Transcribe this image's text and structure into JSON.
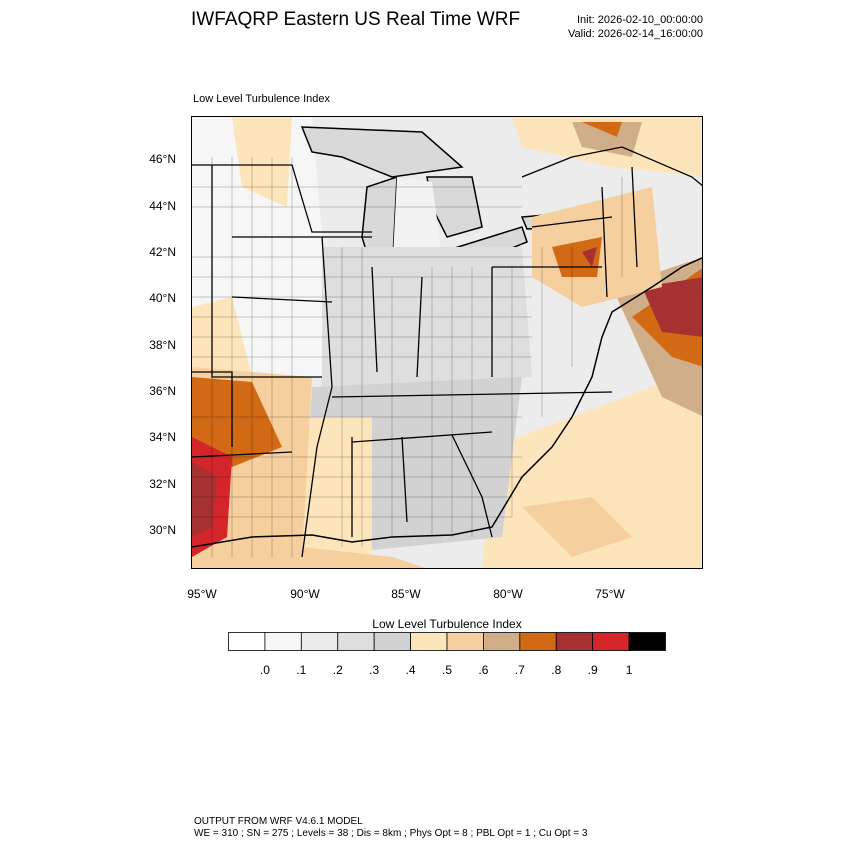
{
  "title": "IWFAQRP Eastern US Real Time WRF",
  "init_label": "Init: 2026-02-10_00:00:00",
  "valid_label": "Valid: 2026-02-14_16:00:00",
  "panel_title": "Low Level Turbulence Index",
  "lat_labels": [
    "46°N",
    "44°N",
    "42°N",
    "40°N",
    "38°N",
    "36°N",
    "34°N",
    "32°N",
    "30°N"
  ],
  "lon_labels": [
    "95°W",
    "90°W",
    "85°W",
    "80°W",
    "75°W"
  ],
  "colorbar": {
    "title": "Low Level Turbulence Index",
    "colors": [
      "#ffffff",
      "#f6f6f6",
      "#ececec",
      "#dedede",
      "#d2d2d2",
      "#fde5bb",
      "#f6cf9f",
      "#d1ae8a",
      "#d26915",
      "#a63131",
      "#d4252b",
      "#000000"
    ],
    "tick_labels": [
      ".0",
      ".1",
      ".2",
      ".3",
      ".4",
      ".5",
      ".6",
      ".7",
      ".8",
      ".9",
      "1"
    ]
  },
  "footer_line1": "OUTPUT FROM WRF V4.6.1 MODEL",
  "footer_line2": "WE = 310 ; SN = 275 ; Levels = 38 ; Dis = 8km ; Phys Opt = 8 ; PBL Opt = 1 ; Cu Opt = 3"
}
